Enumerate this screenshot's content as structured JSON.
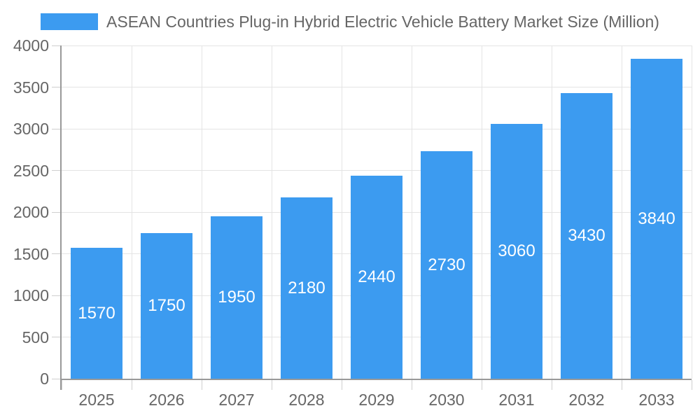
{
  "legend": {
    "label": "ASEAN Countries Plug-in Hybrid Electric Vehicle Battery Market Size (Million)"
  },
  "colors": {
    "bar": "#3C9BF0",
    "grid": "#E4E4E4",
    "axis": "#999999",
    "tick": "#CFCFCF",
    "text": "#666666",
    "bar_label": "#FFFFFF",
    "background": "#FFFFFF"
  },
  "chart_data": {
    "type": "bar",
    "title": "ASEAN Countries Plug-in Hybrid Electric Vehicle Battery Market Size (Million)",
    "categories": [
      "2025",
      "2026",
      "2027",
      "2028",
      "2029",
      "2030",
      "2031",
      "2032",
      "2033"
    ],
    "values": [
      1570,
      1750,
      1950,
      2180,
      2440,
      2730,
      3060,
      3430,
      3840
    ],
    "series_name": "ASEAN Countries Plug-in Hybrid Electric Vehicle Battery Market Size (Million)",
    "xlabel": "",
    "ylabel": "",
    "ylim": [
      0,
      4000
    ],
    "yticks": [
      0,
      500,
      1000,
      1500,
      2000,
      2500,
      3000,
      3500,
      4000
    ],
    "grid": true,
    "legend_position": "top",
    "value_label_position": "inside-center"
  }
}
